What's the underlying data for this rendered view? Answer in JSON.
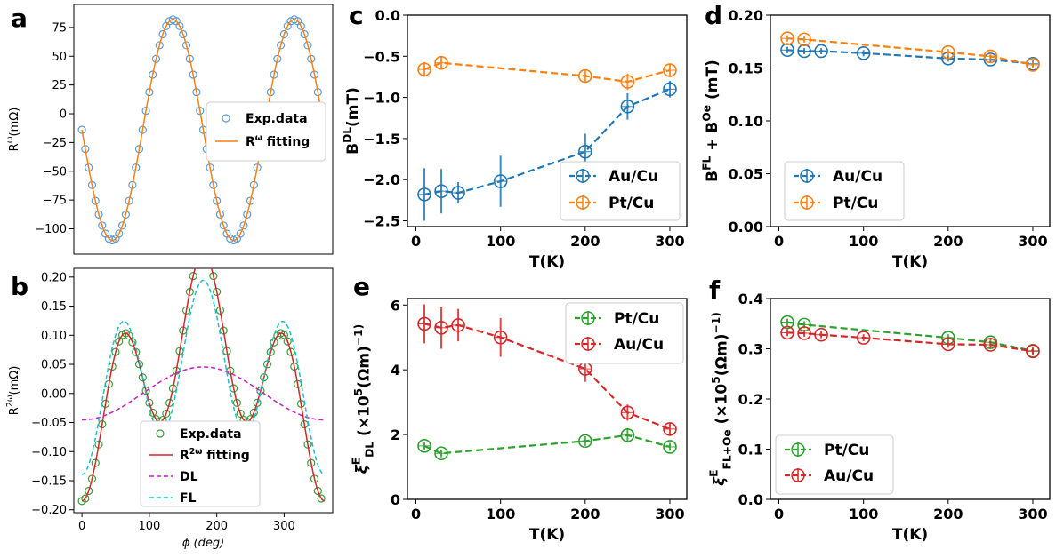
{
  "figure_letters": [
    "a",
    "b",
    "c",
    "d",
    "e",
    "f"
  ],
  "colors": {
    "blue": "#1f77b4",
    "orange": "#ff7f0e",
    "red": "#d62728",
    "green": "#2ca02c",
    "purple": "#c71fc2",
    "cyan": "#17becf",
    "exp_blue": "#5b9bd5",
    "exp_green": "#3a9b3a"
  },
  "chart_data": [
    {
      "id": "a",
      "type": "scatter",
      "xlabel": "",
      "ylabel": "R^ω(mΩ)",
      "xlim": [
        -12,
        372
      ],
      "ylim": [
        -122,
        95
      ],
      "yticks": [
        75,
        50,
        25,
        0,
        -25,
        -50,
        -75,
        -100
      ],
      "ytick_labels": [
        "75",
        "50",
        "25",
        "0",
        "−25",
        "−50",
        "−75",
        "−100"
      ],
      "xticks": [],
      "legend": {
        "placement": "center-right",
        "entries": [
          "Exp.data",
          "R^ω fitting"
        ]
      },
      "series": [
        {
          "name": "Exp.data",
          "kind": "markers",
          "color": "#5b9bd5",
          "source": "sampled",
          "model": "sine",
          "amp": -96,
          "freq": 2,
          "offset": -14,
          "phase": 0,
          "x_start": 0,
          "x_end": 355,
          "x_step": 5
        },
        {
          "name": "R^ω fitting",
          "kind": "line",
          "color": "#ff7f0e",
          "source": "curve",
          "model": "sine",
          "amp": -96,
          "freq": 2,
          "offset": -14,
          "phase": 0,
          "x_start": 0,
          "x_end": 360,
          "x_step": 2
        }
      ]
    },
    {
      "id": "b",
      "type": "scatter",
      "xlabel": "ϕ (deg)",
      "ylabel": "R^2ω(mΩ)",
      "xlim": [
        -12,
        372
      ],
      "ylim": [
        -0.205,
        0.215
      ],
      "xticks": [
        0,
        100,
        200,
        300
      ],
      "yticks": [
        0.2,
        0.15,
        0.1,
        0.05,
        0.0,
        -0.05,
        -0.1,
        -0.15,
        -0.2
      ],
      "ytick_labels": [
        "0.20",
        "0.15",
        "0.10",
        "0.05",
        "0.00",
        "−0.05",
        "−0.10",
        "−0.15",
        "−0.20"
      ],
      "legend": {
        "placement": "bottom-center",
        "entries": [
          "Exp.data",
          "R^2ω fitting",
          "DL",
          "FL"
        ]
      },
      "series": [
        {
          "name": "Exp.data",
          "kind": "markers",
          "color": "#3a9b3a",
          "source": "sampled",
          "model": "sum",
          "x_start": 0,
          "x_end": 355,
          "x_step": 5
        },
        {
          "name": "R^2ω fitting",
          "kind": "line",
          "color": "#d62728",
          "source": "curve",
          "model": "sum",
          "x_start": 0,
          "x_end": 360,
          "x_step": 2
        },
        {
          "name": "DL",
          "kind": "dashed",
          "color": "#c71fc2",
          "source": "curve",
          "model": "dl",
          "x_start": 0,
          "x_end": 360,
          "x_step": 2
        },
        {
          "name": "FL",
          "kind": "dashed",
          "color": "#17becf",
          "source": "curve",
          "model": "fl",
          "x_start": 0,
          "x_end": 360,
          "x_step": 2
        }
      ]
    },
    {
      "id": "c",
      "type": "line",
      "xlabel": "T(K)",
      "ylabel": "B^DL(mT)",
      "xlim": [
        -10,
        320
      ],
      "ylim": [
        -2.57,
        0.0
      ],
      "xticks": [
        0,
        100,
        200,
        300
      ],
      "yticks": [
        0.0,
        -0.5,
        -1.0,
        -1.5,
        -2.0,
        -2.5
      ],
      "ytick_labels": [
        "0.0",
        "−0.5",
        "−1.0",
        "−1.5",
        "−2.0",
        "−2.5"
      ],
      "legend": {
        "placement": "bottom-right",
        "entries": [
          "Au/Cu",
          "Pt/Cu"
        ]
      },
      "series": [
        {
          "name": "Au/Cu",
          "color": "#1f77b4",
          "x": [
            10,
            30,
            50,
            100,
            200,
            250,
            300
          ],
          "y": [
            -2.18,
            -2.14,
            -2.16,
            -2.02,
            -1.66,
            -1.11,
            -0.9
          ],
          "yerr": [
            0.32,
            0.27,
            0.13,
            0.31,
            0.22,
            0.16,
            0.1
          ]
        },
        {
          "name": "Pt/Cu",
          "color": "#ff7f0e",
          "x": [
            10,
            30,
            200,
            250,
            300
          ],
          "y": [
            -0.66,
            -0.58,
            -0.74,
            -0.81,
            -0.67
          ],
          "yerr": [
            0.09,
            0.07,
            0.07,
            0.1,
            0.08
          ]
        }
      ]
    },
    {
      "id": "d",
      "type": "line",
      "xlabel": "T(K)",
      "ylabel": "B^FL + B^Oe (mT)",
      "xlim": [
        -10,
        320
      ],
      "ylim": [
        0.0,
        0.2
      ],
      "xticks": [
        0,
        100,
        200,
        300
      ],
      "yticks": [
        0.2,
        0.15,
        0.1,
        0.05,
        0.0
      ],
      "ytick_labels": [
        "0.20",
        "0.15",
        "0.10",
        "0.05",
        "0.00"
      ],
      "legend": {
        "placement": "bottom-left",
        "entries": [
          "Au/Cu",
          "Pt/Cu"
        ]
      },
      "series": [
        {
          "name": "Au/Cu",
          "color": "#1f77b4",
          "x": [
            10,
            30,
            50,
            100,
            200,
            250,
            300
          ],
          "y": [
            0.167,
            0.166,
            0.166,
            0.164,
            0.159,
            0.158,
            0.154
          ],
          "yerr": [
            0.003,
            0.003,
            0.003,
            0.003,
            0.003,
            0.003,
            0.003
          ]
        },
        {
          "name": "Pt/Cu",
          "color": "#ff7f0e",
          "x": [
            10,
            30,
            200,
            250,
            300
          ],
          "y": [
            0.178,
            0.177,
            0.165,
            0.161,
            0.153
          ],
          "yerr": [
            0.003,
            0.003,
            0.003,
            0.003,
            0.003
          ]
        }
      ]
    },
    {
      "id": "e",
      "type": "line",
      "xlabel": "T(K)",
      "ylabel": "ξ^E_DL (×10^5(Ωm)^−1)",
      "xlim": [
        -10,
        320
      ],
      "ylim": [
        0,
        6.2
      ],
      "xticks": [
        0,
        100,
        200,
        300
      ],
      "yticks": [
        6,
        4,
        2,
        0
      ],
      "ytick_labels": [
        "6",
        "4",
        "2",
        "0"
      ],
      "legend": {
        "placement": "top-right",
        "entries": [
          "Pt/Cu",
          "Au/Cu"
        ]
      },
      "series": [
        {
          "name": "Pt/Cu",
          "color": "#2ca02c",
          "x": [
            10,
            30,
            200,
            250,
            300
          ],
          "y": [
            1.65,
            1.42,
            1.8,
            1.98,
            1.62
          ],
          "yerr": [
            0.12,
            0.12,
            0.15,
            0.22,
            0.12
          ]
        },
        {
          "name": "Au/Cu",
          "color": "#d62728",
          "x": [
            10,
            30,
            50,
            100,
            200,
            250,
            300
          ],
          "y": [
            5.42,
            5.3,
            5.38,
            5.0,
            4.03,
            2.68,
            2.17
          ],
          "yerr": [
            0.6,
            0.65,
            0.5,
            0.6,
            0.4,
            0.25,
            0.2
          ]
        }
      ]
    },
    {
      "id": "f",
      "type": "line",
      "xlabel": "T(K)",
      "ylabel": "ξ^E_FL+Oe (×10^5(Ωm)^−1)",
      "xlim": [
        -10,
        320
      ],
      "ylim": [
        0.0,
        0.4
      ],
      "xticks": [
        0,
        100,
        200,
        300
      ],
      "yticks": [
        0.4,
        0.3,
        0.2,
        0.1,
        0.0
      ],
      "ytick_labels": [
        "0.4",
        "0.3",
        "0.2",
        "0.1",
        "0.0"
      ],
      "legend": {
        "placement": "bottom-left",
        "entries": [
          "Pt/Cu",
          "Au/Cu"
        ]
      },
      "series": [
        {
          "name": "Pt/Cu",
          "color": "#2ca02c",
          "x": [
            10,
            30,
            200,
            250,
            300
          ],
          "y": [
            0.353,
            0.348,
            0.322,
            0.313,
            0.296
          ],
          "yerr": [
            0.007,
            0.007,
            0.007,
            0.007,
            0.007
          ]
        },
        {
          "name": "Au/Cu",
          "color": "#d62728",
          "x": [
            10,
            30,
            50,
            100,
            200,
            250,
            300
          ],
          "y": [
            0.332,
            0.331,
            0.328,
            0.322,
            0.309,
            0.308,
            0.295
          ],
          "yerr": [
            0.007,
            0.007,
            0.007,
            0.007,
            0.007,
            0.007,
            0.007
          ]
        }
      ]
    }
  ]
}
